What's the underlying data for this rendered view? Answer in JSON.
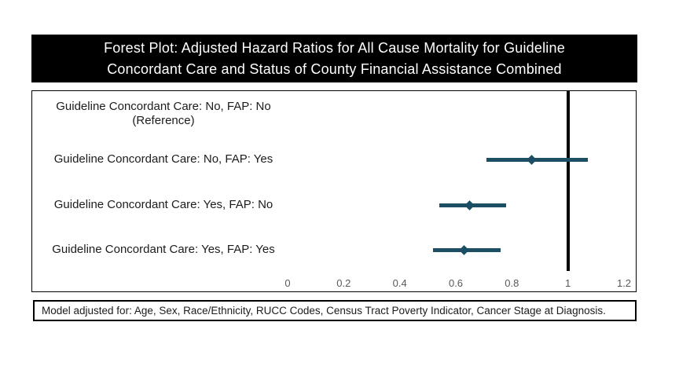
{
  "title": {
    "line1": "Forest Plot: Adjusted Hazard Ratios for All Cause Mortality for Guideline",
    "line2": "Concordant Care and Status of County Financial Assistance Combined",
    "full": "Forest Plot: Adjusted Hazard Ratios for All Cause Mortality for Guideline Concordant Care and Status of County Financial Assistance Combined"
  },
  "footnote": {
    "text": "Model adjusted for: Age, Sex, Race/Ethnicity, RUCC Codes, Census Tract Poverty Indicator, Cancer Stage at Diagnosis."
  },
  "colors": {
    "marker": "#1c4f63",
    "reference_line": "#000000",
    "tick_label": "#595959",
    "title_bg": "#000000",
    "title_text": "#ffffff"
  },
  "chart_data": {
    "type": "forest",
    "title": "Forest Plot: Adjusted Hazard Ratios for All Cause Mortality for Guideline Concordant Care and Status of County Financial Assistance Combined",
    "xlabel": "",
    "ylabel": "",
    "grid": false,
    "legend": null,
    "x_axis": {
      "range": [
        0,
        1.2
      ],
      "ticks": [
        0,
        0.2,
        0.4,
        0.6,
        0.8,
        1,
        1.2
      ],
      "tick_labels": [
        "0",
        "0.2",
        "0.4",
        "0.6",
        "0.8",
        "1",
        "1.2"
      ]
    },
    "reference_line_x": 1,
    "rows": [
      {
        "label": "Guideline Concordant Care: No, FAP: No (Reference)",
        "label_lines": [
          "Guideline Concordant Care: No, FAP: No",
          "(Reference)"
        ],
        "hr": null,
        "ci_low": null,
        "ci_high": null,
        "is_reference": true
      },
      {
        "label": "Guideline Concordant Care: No, FAP: Yes",
        "label_lines": [
          "Guideline Concordant Care: No, FAP: Yes"
        ],
        "hr": 0.87,
        "ci_low": 0.71,
        "ci_high": 1.07,
        "is_reference": false
      },
      {
        "label": "Guideline Concordant Care: Yes, FAP: No",
        "label_lines": [
          "Guideline Concordant Care: Yes, FAP: No"
        ],
        "hr": 0.65,
        "ci_low": 0.54,
        "ci_high": 0.78,
        "is_reference": false
      },
      {
        "label": "Guideline Concordant Care: Yes, FAP: Yes",
        "label_lines": [
          "Guideline Concordant Care: Yes, FAP: Yes"
        ],
        "hr": 0.63,
        "ci_low": 0.52,
        "ci_high": 0.76,
        "is_reference": false
      }
    ]
  }
}
